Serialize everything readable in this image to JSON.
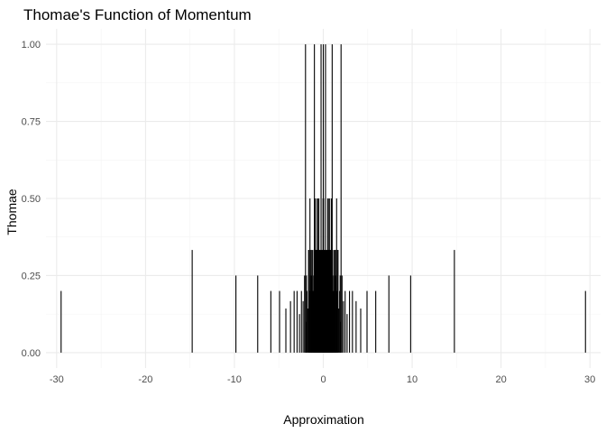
{
  "chart_data": {
    "type": "bar",
    "title": "Thomae's Function of Momentum",
    "xlabel": "Approximation",
    "ylabel": "Thomae",
    "xlim": [
      -31.2,
      31.2
    ],
    "ylim": [
      -0.05,
      1.05
    ],
    "x_ticks": [
      -30,
      -20,
      -10,
      0,
      10,
      20,
      30
    ],
    "x_tick_labels": [
      "-30",
      "-20",
      "-10",
      "0",
      "10",
      "20",
      "30"
    ],
    "y_ticks": [
      0,
      0.25,
      0.5,
      0.75,
      1
    ],
    "y_tick_labels": [
      "0.00",
      "0.25",
      "0.50",
      "0.75",
      "1.00"
    ],
    "grid": true,
    "series": [
      {
        "name": "Thomae",
        "x": [
          -29.5,
          -14.75,
          -9.83,
          -7.38,
          -5.9,
          -4.92,
          -4.21,
          -3.69,
          -3.28,
          -2.95,
          -2.68,
          -2.46,
          -2.27,
          -2.11,
          -1.97,
          -1.84,
          -1.74,
          -1.64,
          -1.55,
          -1.48,
          -1.4,
          -1.34,
          -1.28,
          -1.23,
          -1.18,
          -1.13,
          -1.09,
          -1.05,
          -1.02,
          -0.98,
          -0.95,
          -0.92,
          -0.89,
          -0.87,
          -0.84,
          -0.82,
          -0.8,
          -0.78,
          -0.76,
          -0.74,
          -0.72,
          -0.7,
          -0.69,
          -0.67,
          -0.66,
          -0.64,
          -0.63,
          -0.61,
          -0.6,
          -0.59,
          -0.58,
          -0.57,
          -0.56,
          -0.55,
          -0.54,
          -0.53,
          -0.52,
          -0.51,
          -0.5,
          -0.49,
          -0.47,
          -0.44,
          -0.41,
          -0.38,
          -0.35,
          -0.32,
          -0.29,
          -0.26,
          -0.23,
          -0.2,
          -0.17,
          -0.14,
          -0.11,
          -0.08,
          -0.05,
          -0.03,
          0.03,
          0.05,
          0.08,
          0.11,
          0.14,
          0.17,
          0.2,
          0.23,
          0.26,
          0.29,
          0.32,
          0.35,
          0.38,
          0.41,
          0.44,
          0.47,
          0.49,
          0.5,
          0.51,
          0.52,
          0.53,
          0.54,
          0.55,
          0.56,
          0.57,
          0.58,
          0.59,
          0.6,
          0.61,
          0.63,
          0.64,
          0.66,
          0.67,
          0.69,
          0.7,
          0.72,
          0.74,
          0.76,
          0.78,
          0.8,
          0.82,
          0.84,
          0.87,
          0.89,
          0.92,
          0.95,
          0.98,
          1.02,
          1.05,
          1.09,
          1.13,
          1.18,
          1.23,
          1.28,
          1.34,
          1.4,
          1.48,
          1.55,
          1.64,
          1.74,
          1.84,
          1.97,
          2.11,
          2.27,
          2.46,
          2.68,
          2.95,
          3.28,
          3.69,
          4.21,
          4.92,
          5.9,
          7.38,
          9.83,
          14.75,
          29.5,
          -2.0,
          -1.0,
          -0.25,
          0.0,
          0.25,
          1.0,
          2.0,
          -1.5,
          -0.5,
          0.5,
          1.5,
          -0.75,
          0.75,
          -1.65,
          -1.35,
          -1.05,
          -0.9,
          0.9,
          1.05,
          1.35,
          1.65,
          -1.9,
          -0.6,
          0.6,
          1.9
        ],
        "values": [
          0.2,
          0.333,
          0.25,
          0.25,
          0.2,
          0.2,
          0.143,
          0.167,
          0.2,
          0.2,
          0.125,
          0.2,
          0.167,
          0.25,
          0.1,
          0.2,
          0.143,
          0.333,
          0.2,
          0.25,
          0.333,
          0.2,
          0.25,
          0.333,
          0.2,
          0.2,
          0.25,
          0.167,
          0.333,
          0.2,
          0.25,
          0.5,
          0.2,
          0.333,
          0.25,
          0.2,
          0.333,
          0.143,
          0.2,
          0.25,
          0.333,
          0.2,
          0.5,
          0.25,
          0.2,
          0.333,
          0.2,
          0.25,
          0.167,
          0.2,
          0.333,
          0.25,
          0.2,
          0.5,
          0.2,
          0.25,
          0.333,
          0.2,
          0.25,
          0.333,
          0.2,
          0.25,
          0.333,
          0.2,
          0.25,
          0.333,
          0.2,
          0.25,
          0.2,
          0.333,
          0.25,
          0.2,
          0.333,
          0.25,
          0.333,
          0.5,
          0.5,
          0.333,
          0.25,
          0.333,
          0.2,
          0.25,
          0.333,
          0.2,
          0.25,
          0.2,
          0.333,
          0.25,
          0.2,
          0.333,
          0.25,
          0.2,
          0.333,
          0.25,
          0.2,
          0.333,
          0.25,
          0.2,
          0.5,
          0.2,
          0.25,
          0.333,
          0.2,
          0.167,
          0.25,
          0.2,
          0.333,
          0.2,
          0.25,
          0.5,
          0.2,
          0.333,
          0.25,
          0.2,
          0.143,
          0.333,
          0.2,
          0.25,
          0.333,
          0.2,
          0.5,
          0.25,
          0.2,
          0.333,
          0.167,
          0.25,
          0.2,
          0.2,
          0.333,
          0.25,
          0.2,
          0.333,
          0.25,
          0.2,
          0.333,
          0.143,
          0.2,
          0.1,
          0.25,
          0.167,
          0.2,
          0.125,
          0.2,
          0.2,
          0.167,
          0.143,
          0.2,
          0.2,
          0.25,
          0.25,
          0.333,
          0.2,
          1.0,
          1.0,
          1.0,
          1.0,
          1.0,
          1.0,
          1.0,
          0.5,
          0.5,
          0.5,
          0.5,
          0.333,
          0.333,
          0.333,
          0.333,
          0.333,
          0.5,
          0.5,
          0.333,
          0.333,
          0.333,
          0.25,
          0.333,
          0.333,
          0.25
        ]
      }
    ]
  }
}
